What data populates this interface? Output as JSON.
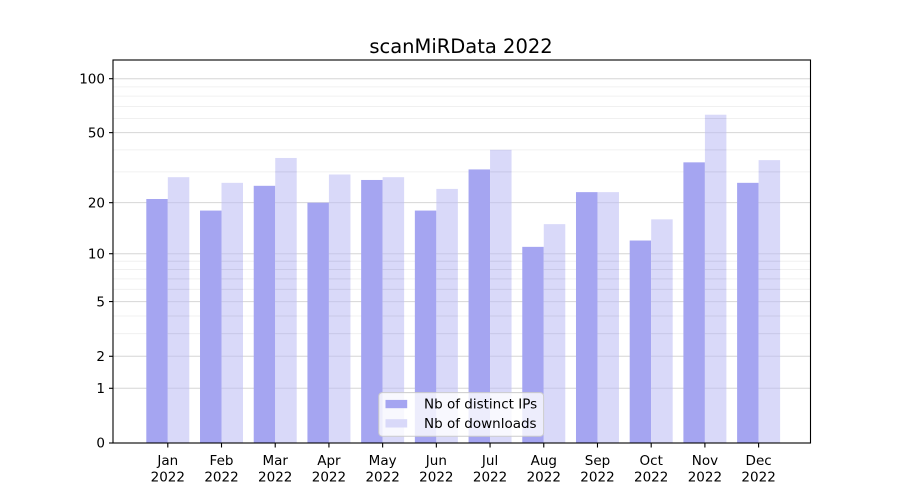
{
  "window": {
    "title": "scanMiRData 2022"
  },
  "chart_data": {
    "type": "bar",
    "title": "scanMiRData 2022",
    "categories": [
      "Jan",
      "Feb",
      "Mar",
      "Apr",
      "May",
      "Jun",
      "Jul",
      "Aug",
      "Sep",
      "Oct",
      "Nov",
      "Dec"
    ],
    "category_year": "2022",
    "series": [
      {
        "name": "Nb of distinct IPs",
        "color": "#a5a5f1",
        "values": [
          21,
          18,
          25,
          20,
          27,
          18,
          31,
          11,
          23,
          12,
          34,
          26
        ]
      },
      {
        "name": "Nb of downloads",
        "color": "#d9d9f9",
        "values": [
          28,
          26,
          36,
          29,
          28,
          24,
          40,
          15,
          23,
          16,
          63,
          35
        ]
      }
    ],
    "xlabel": "",
    "ylabel": "",
    "yscale": "log1p",
    "yticks": [
      0,
      1,
      2,
      5,
      10,
      20,
      50,
      100
    ],
    "yticks_minor": [
      3,
      4,
      6,
      7,
      8,
      9,
      30,
      40,
      60,
      70,
      80,
      90
    ],
    "ylim": [
      0,
      127
    ],
    "grid": "on",
    "legend_position": "lower-center-inside",
    "legend_entries": [
      "Nb of distinct IPs",
      "Nb of downloads"
    ]
  },
  "colors": {
    "background": "#ffffff",
    "bar_distinct_ips": "#a5a5f1",
    "bar_downloads": "#d9d9f9",
    "grid_major": "#d6d6d6",
    "grid_minor": "#f0f0f0",
    "axis": "#000000",
    "legend_border": "#cccccc",
    "legend_background": "#ffffff"
  }
}
